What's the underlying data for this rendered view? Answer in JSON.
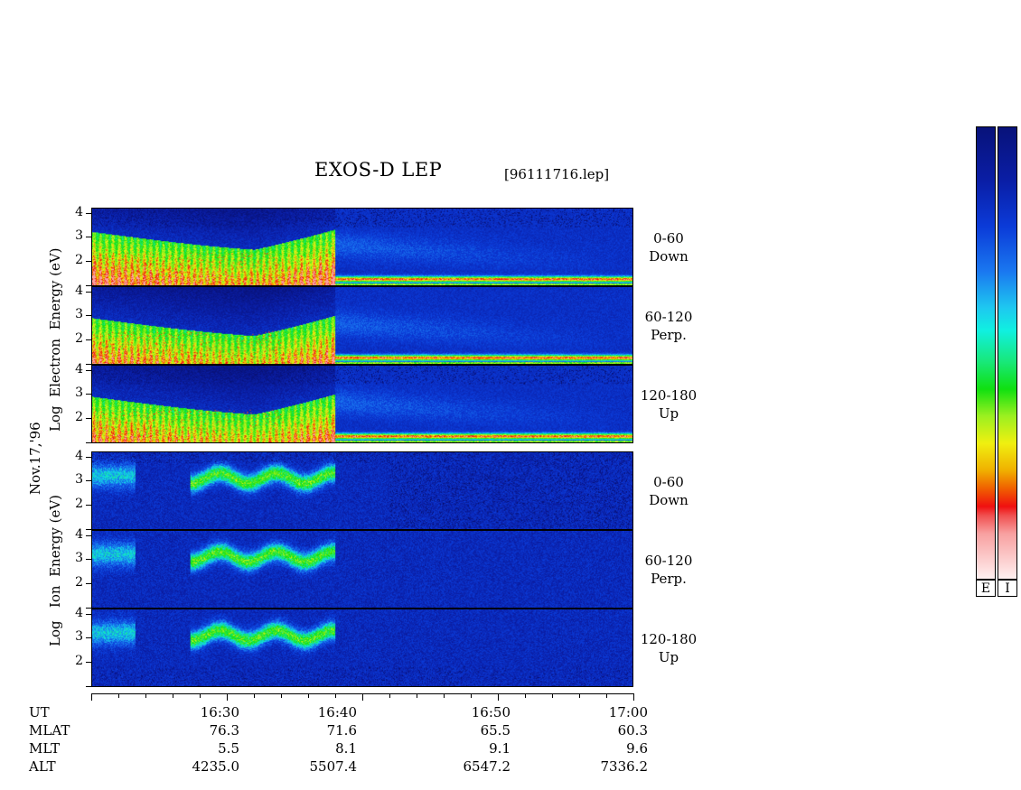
{
  "title": "EXOS-D LEP",
  "file_label": "[96111716.lep]",
  "date_label": "Nov.17,'96",
  "electron_axis_label": [
    "Log",
    "Electron",
    "Energy",
    "(eV)"
  ],
  "ion_axis_label": [
    "Log",
    "Ion",
    "Energy",
    "(eV)"
  ],
  "y_ticks": [
    "4",
    "3",
    "2"
  ],
  "panels": [
    {
      "group": "electron",
      "angle": "0-60",
      "dir": "Down"
    },
    {
      "group": "electron",
      "angle": "60-120",
      "dir": "Perp."
    },
    {
      "group": "electron",
      "angle": "120-180",
      "dir": "Up"
    },
    {
      "group": "ion",
      "angle": "0-60",
      "dir": "Down"
    },
    {
      "group": "ion",
      "angle": "60-120",
      "dir": "Perp."
    },
    {
      "group": "ion",
      "angle": "120-180",
      "dir": "Up"
    }
  ],
  "footer": {
    "rows": [
      {
        "label": "UT",
        "values": [
          "16:30",
          "16:40",
          "16:50",
          "17:00"
        ]
      },
      {
        "label": "MLAT",
        "values": [
          "76.3",
          "71.6",
          "65.5",
          "60.3"
        ]
      },
      {
        "label": "MLT",
        "values": [
          "5.5",
          "8.1",
          "9.1",
          "9.6"
        ]
      },
      {
        "label": "ALT",
        "values": [
          "4235.0",
          "5507.4",
          "6547.2",
          "7336.2"
        ]
      }
    ]
  },
  "colorbar_labels": [
    "E",
    "I"
  ],
  "chart_data": {
    "type": "heatmap",
    "title": "EXOS-D LEP",
    "x_ticks": [
      "16:30",
      "16:40",
      "16:50",
      "17:00"
    ],
    "x_range_ut": [
      "16:20",
      "17:00"
    ],
    "y_range_log_energy_ev": [
      1,
      4
    ],
    "y_tick_values": [
      2,
      3,
      4
    ],
    "series": [
      {
        "name": "0-60 Down"
      },
      {
        "name": "60-120 Perp."
      },
      {
        "name": "120-180 Up"
      },
      {
        "name": "0-60 Down"
      },
      {
        "name": "60-120 Perp."
      },
      {
        "name": "120-180 Up"
      }
    ],
    "colors": {
      "low": "#0a1ea6",
      "mid_low": "#10f0e0",
      "mid": "#10e010",
      "mid_high": "#f0f010",
      "high": "#f01010",
      "max": "#fff0f0"
    }
  }
}
